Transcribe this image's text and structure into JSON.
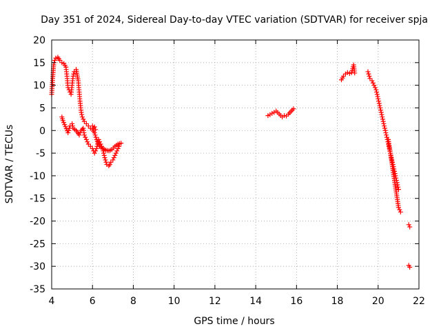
{
  "chart_data": {
    "type": "scatter",
    "title": "Day 351 of 2024, Sidereal Day-to-day VTEC variation (SDTVAR) for receiver spja",
    "xlabel": "GPS time / hours",
    "ylabel": "SDTVAR / TECUs",
    "xlim": [
      4,
      22
    ],
    "ylim": [
      -35,
      20
    ],
    "xticks": [
      4,
      6,
      8,
      10,
      12,
      14,
      16,
      18,
      20,
      22
    ],
    "yticks": [
      20,
      15,
      10,
      5,
      0,
      -5,
      -10,
      -15,
      -20,
      -25,
      -30,
      -35
    ],
    "grid": true,
    "marker": "+",
    "colors": {
      "series": "#ff0000",
      "grid": "#a0a0a0",
      "axis": "#000000"
    },
    "series": [
      {
        "name": "SDTVAR",
        "x": [
          4.0,
          4.05,
          4.1,
          4.15,
          4.2,
          4.3,
          4.4,
          4.5,
          4.6,
          4.7,
          4.75,
          4.8,
          4.85,
          4.9,
          4.95,
          5.0,
          5.05,
          5.1,
          5.2,
          5.3,
          5.35,
          5.4,
          5.45,
          5.5,
          5.6,
          5.7,
          5.8,
          5.9,
          6.0,
          6.1,
          6.2,
          6.35,
          6.5,
          6.65,
          6.8,
          6.95,
          7.1,
          7.25,
          7.4,
          4.5,
          4.55,
          4.8,
          4.9,
          5.0,
          5.05,
          5.2,
          5.35,
          5.4,
          5.45,
          5.5,
          5.55,
          5.6,
          5.7,
          5.8,
          5.9,
          6.0,
          6.1,
          6.2,
          6.3,
          6.4,
          6.5,
          6.6,
          6.7,
          6.8,
          6.85,
          6.9,
          7.0,
          7.1,
          7.2,
          7.3,
          6.0,
          6.05,
          6.1,
          6.15,
          14.6,
          14.7,
          14.8,
          14.9,
          15.0,
          15.3,
          15.4,
          15.5,
          15.6,
          15.85,
          18.2,
          18.3,
          18.4,
          18.5,
          18.6,
          18.7,
          18.8,
          18.85,
          19.5,
          19.6,
          19.7,
          19.8,
          19.9,
          20.0,
          20.1,
          20.2,
          20.3,
          20.4,
          20.5,
          20.6,
          20.7,
          20.8,
          20.9,
          21.0,
          20.5,
          20.6,
          20.7,
          20.8,
          20.9,
          21.0,
          21.1,
          21.5,
          21.55,
          21.5,
          21.55
        ],
        "y": [
          8.0,
          11.5,
          14.5,
          15.5,
          16.0,
          16.2,
          15.5,
          15.0,
          14.8,
          14.0,
          12.0,
          9.5,
          9.0,
          8.5,
          8.0,
          10.0,
          12.0,
          13.0,
          13.5,
          11.0,
          8.5,
          6.0,
          4.0,
          3.0,
          2.0,
          1.5,
          1.0,
          0.5,
          0.2,
          -0.5,
          -2.0,
          -3.5,
          -4.0,
          -4.3,
          -4.5,
          -4.2,
          -3.5,
          -3.0,
          -2.8,
          3.0,
          2.2,
          -0.5,
          1.0,
          1.5,
          0.5,
          0.0,
          -1.0,
          -0.5,
          0.0,
          0.3,
          0.5,
          -1.0,
          -2.0,
          -3.0,
          -3.5,
          -4.0,
          -5.0,
          -4.0,
          -2.0,
          -3.0,
          -4.0,
          -6.0,
          -7.5,
          -7.8,
          -7.5,
          -7.0,
          -6.5,
          -5.5,
          -4.5,
          -3.5,
          1.0,
          0.5,
          0.8,
          0.2,
          3.3,
          3.5,
          3.8,
          4.0,
          4.3,
          3.0,
          3.3,
          3.2,
          3.6,
          4.8,
          11.2,
          12.0,
          12.5,
          12.8,
          12.6,
          12.8,
          14.5,
          12.7,
          13.0,
          11.5,
          11.0,
          10.0,
          9.0,
          7.0,
          5.0,
          3.0,
          1.0,
          -1.0,
          -3.0,
          -5.0,
          -7.0,
          -9.0,
          -11.0,
          -13.0,
          -2.0,
          -5.0,
          -8.0,
          -11.0,
          -14.0,
          -17.0,
          -18.0,
          -20.8,
          -21.3,
          -29.8,
          -30.2
        ]
      }
    ]
  }
}
